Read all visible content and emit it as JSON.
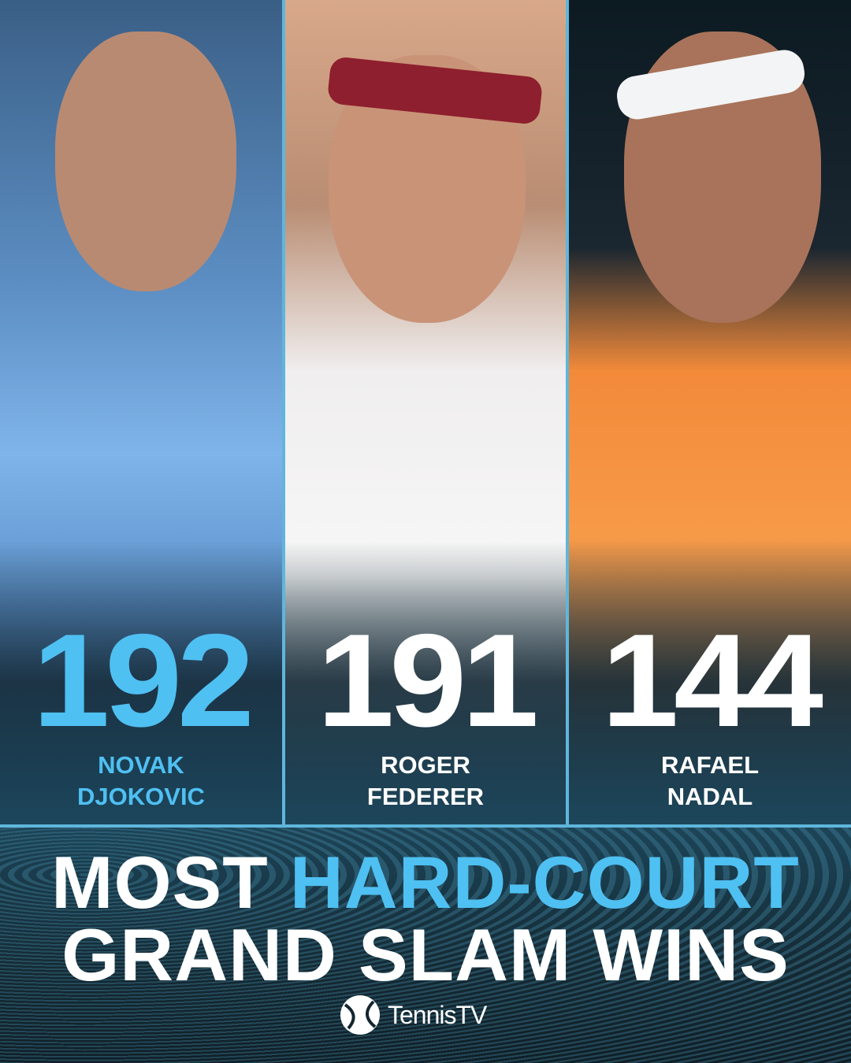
{
  "players": [
    {
      "number": "192",
      "first": "NOVAK",
      "last": "DJOKOVIC",
      "color": "#4fc0f2"
    },
    {
      "number": "191",
      "first": "ROGER",
      "last": "FEDERER",
      "color": "#ffffff"
    },
    {
      "number": "144",
      "first": "RAFAEL",
      "last": "NADAL",
      "color": "#ffffff"
    }
  ],
  "title": {
    "line1_white": "MOST",
    "line1_accent": "HARD-COURT",
    "line2": "GRAND SLAM WINS"
  },
  "logo": {
    "text": "TennisTV",
    "icon": "tennis-ball-icon"
  },
  "colors": {
    "accent": "#4fc0f2",
    "background": "#13262f"
  }
}
